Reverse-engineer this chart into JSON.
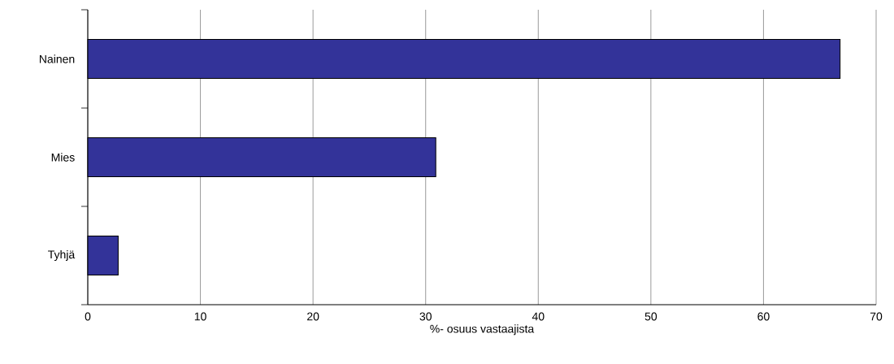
{
  "chart_data": {
    "type": "bar",
    "orientation": "horizontal",
    "xlabel": "%- osuus vastaajista",
    "categories": [
      "Nainen",
      "Mies",
      "Tyhjä"
    ],
    "values": [
      66.8,
      30.9,
      2.7
    ],
    "color": "#333399",
    "xlim": [
      0,
      70
    ],
    "xticks": [
      0,
      10,
      20,
      30,
      40,
      50,
      60,
      70
    ],
    "grid": "x"
  }
}
